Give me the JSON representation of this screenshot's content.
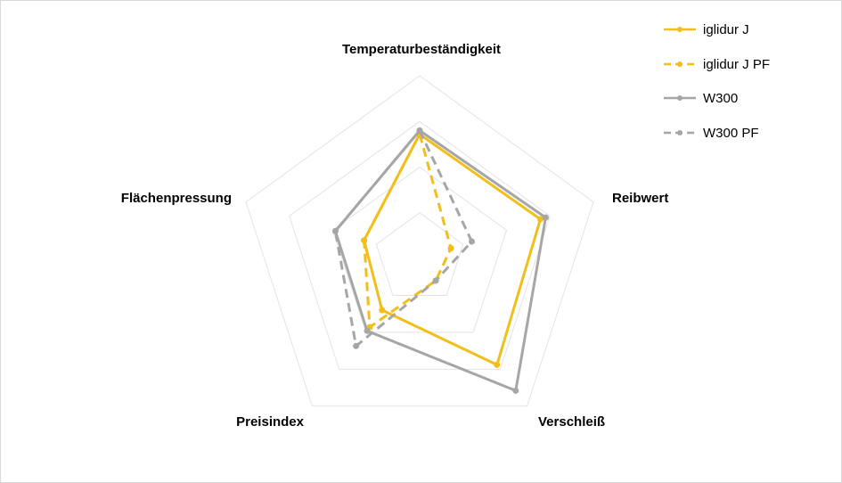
{
  "chart_data": {
    "type": "radar",
    "title": "",
    "axes": [
      "Temperaturbeständigkeit",
      "Reibwert",
      "Verschleiß",
      "Preisindex",
      "Flächenpressung"
    ],
    "scale": {
      "min": 0,
      "max": 4,
      "rings": 4,
      "grid": true
    },
    "legend": {
      "position": "top-right"
    },
    "series": [
      {
        "name": "iglidur J",
        "color": "#f2be1a",
        "dash": false,
        "values": [
          2.72,
          2.78,
          2.88,
          1.4,
          1.28
        ]
      },
      {
        "name": "iglidur J PF",
        "color": "#f2be1a",
        "dash": true,
        "values": [
          2.72,
          0.72,
          0.6,
          1.86,
          1.28
        ]
      },
      {
        "name": "W300",
        "color": "#a6a6a6",
        "dash": false,
        "values": [
          2.8,
          2.9,
          3.58,
          1.96,
          1.94
        ]
      },
      {
        "name": "W300 PF",
        "color": "#a6a6a6",
        "dash": true,
        "values": [
          2.8,
          1.2,
          0.6,
          2.37,
          1.94
        ]
      }
    ]
  }
}
